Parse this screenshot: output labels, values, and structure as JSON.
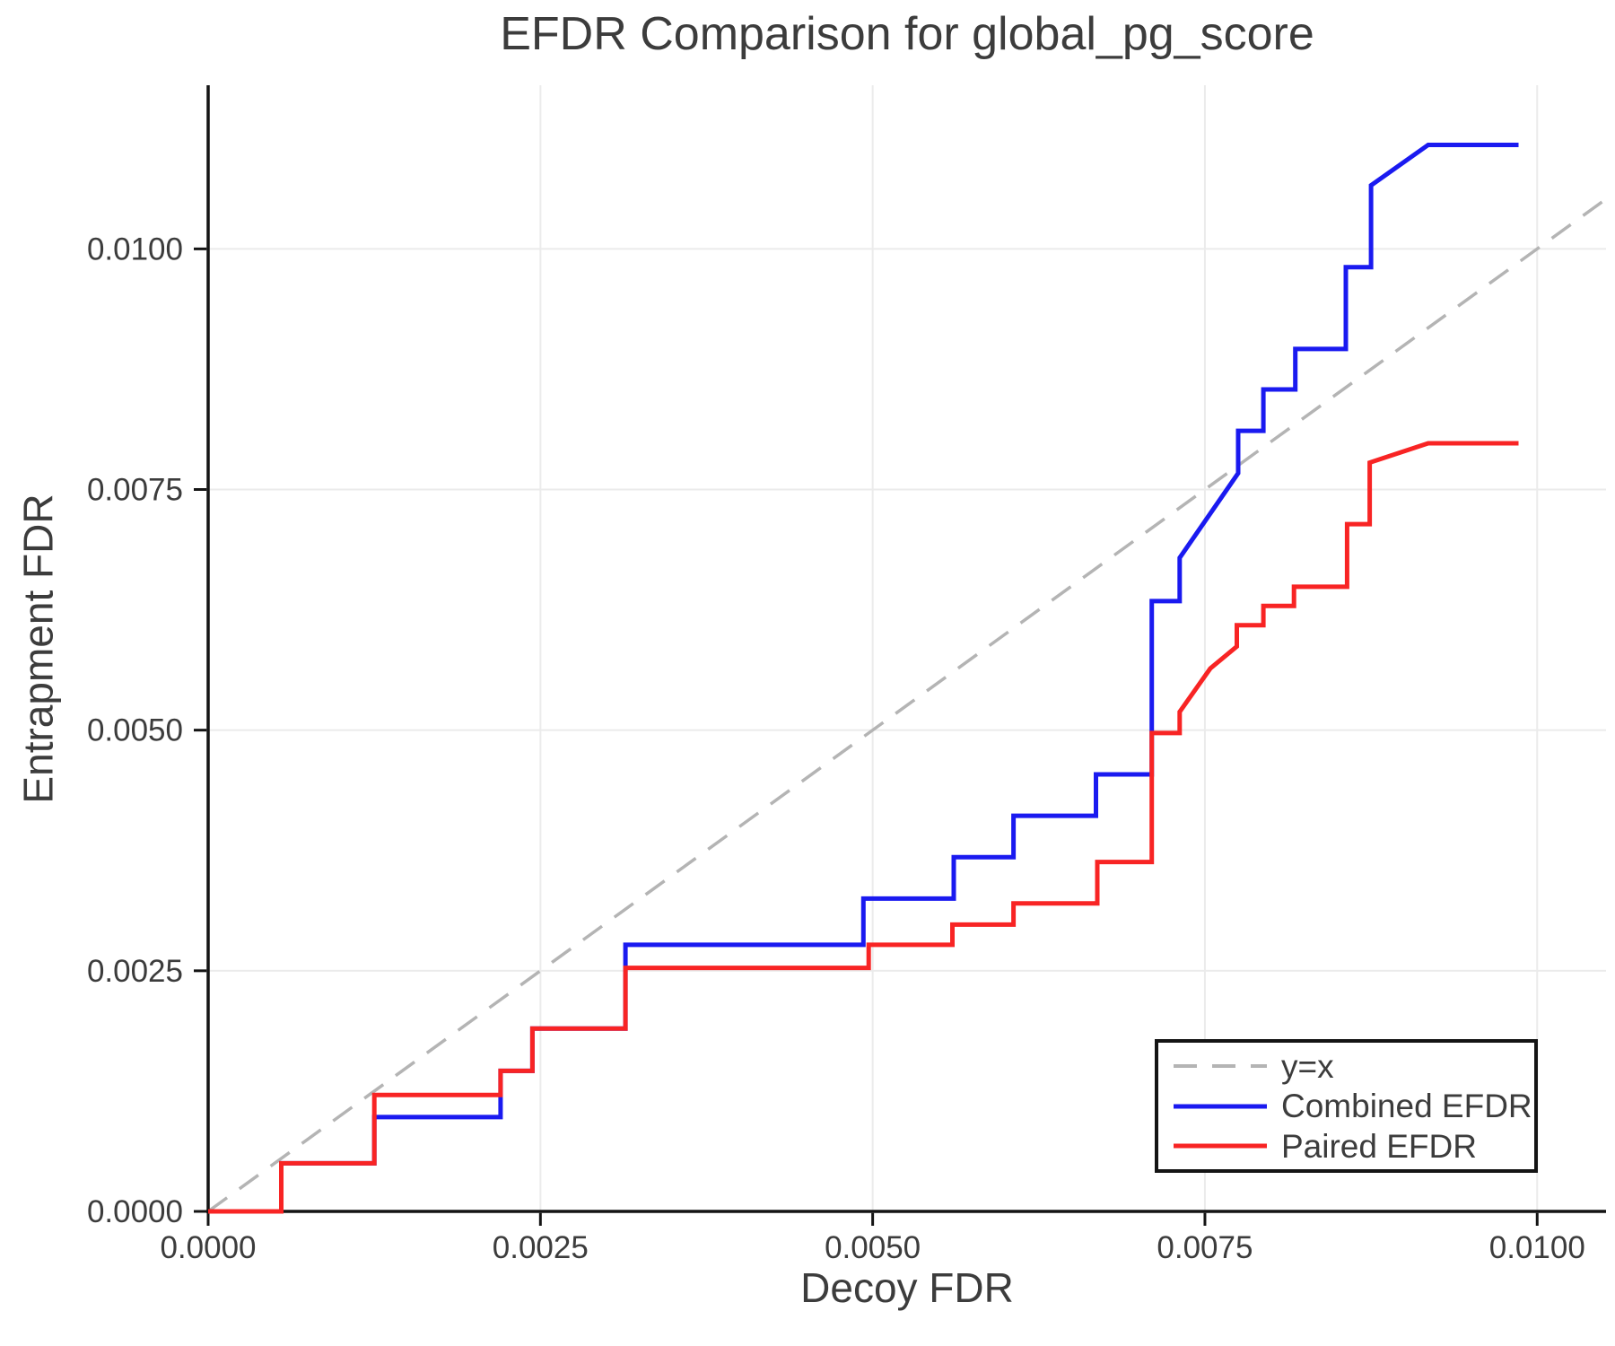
{
  "title": "EFDR Comparison for global_pg_score",
  "x_axis": {
    "label": "Decoy FDR",
    "tick_labels": [
      "0.0000",
      "0.0025",
      "0.0050",
      "0.0075",
      "0.0100"
    ],
    "tick_values": [
      0,
      0.0025,
      0.005,
      0.0075,
      0.01
    ]
  },
  "y_axis": {
    "label": "Entrapment FDR",
    "tick_labels": [
      "0.0000",
      "0.0025",
      "0.0050",
      "0.0075",
      "0.0100"
    ],
    "tick_values": [
      0,
      0.0025,
      0.005,
      0.0075,
      0.01
    ]
  },
  "legend": {
    "items": [
      {
        "label": "y=x",
        "color": "#b4b4b4",
        "dash": true
      },
      {
        "label": "Combined EFDR",
        "color": "#1a1af0",
        "dash": false
      },
      {
        "label": "Paired EFDR",
        "color": "#f82424",
        "dash": false
      }
    ]
  },
  "colors": {
    "grid": "#ebebeb",
    "spine": "#141414",
    "text": "#3c3c3c",
    "reference": "#b4b4b4",
    "combined": "#1a1af0",
    "paired": "#f82424"
  },
  "chart_data": {
    "type": "line",
    "title": "EFDR Comparison for global_pg_score",
    "xlabel": "Decoy FDR",
    "ylabel": "Entrapment FDR",
    "x_range": [
      0,
      0.010518
    ],
    "y_range": [
      0,
      0.0117
    ],
    "grid": true,
    "legend_position": "lower right",
    "reference_line": {
      "name": "y=x",
      "from": [
        0,
        0
      ],
      "to": [
        0.010518,
        0.010518
      ],
      "style": "dashed"
    },
    "series": [
      {
        "name": "Combined EFDR",
        "color": "#1a1af0",
        "points": [
          [
            0.0,
            0.0
          ],
          [
            0.00055,
            0.0
          ],
          [
            0.00055,
            0.0005
          ],
          [
            0.00125,
            0.0005
          ],
          [
            0.00125,
            0.00098
          ],
          [
            0.0022,
            0.00098
          ],
          [
            0.0022,
            0.00146
          ],
          [
            0.00244,
            0.00146
          ],
          [
            0.00244,
            0.0019
          ],
          [
            0.00314,
            0.0019
          ],
          [
            0.00314,
            0.00277
          ],
          [
            0.00493,
            0.00277
          ],
          [
            0.00493,
            0.00325
          ],
          [
            0.00561,
            0.00325
          ],
          [
            0.00561,
            0.00368
          ],
          [
            0.00606,
            0.00368
          ],
          [
            0.00606,
            0.00411
          ],
          [
            0.00668,
            0.00411
          ],
          [
            0.00668,
            0.00454
          ],
          [
            0.0071,
            0.00454
          ],
          [
            0.0071,
            0.00634
          ],
          [
            0.00731,
            0.00634
          ],
          [
            0.00731,
            0.00679
          ],
          [
            0.00775,
            0.00767
          ],
          [
            0.00775,
            0.00811
          ],
          [
            0.00794,
            0.00811
          ],
          [
            0.00794,
            0.00854
          ],
          [
            0.00818,
            0.00854
          ],
          [
            0.00818,
            0.00896
          ],
          [
            0.00856,
            0.00896
          ],
          [
            0.00856,
            0.00981
          ],
          [
            0.00875,
            0.00981
          ],
          [
            0.00875,
            0.01066
          ],
          [
            0.00918,
            0.01108
          ],
          [
            0.00986,
            0.01108
          ]
        ]
      },
      {
        "name": "Paired EFDR",
        "color": "#f82424",
        "points": [
          [
            0.0,
            0.0
          ],
          [
            0.00055,
            0.0
          ],
          [
            0.00055,
            0.0005
          ],
          [
            0.00125,
            0.0005
          ],
          [
            0.00125,
            0.00121
          ],
          [
            0.0022,
            0.00121
          ],
          [
            0.0022,
            0.00146
          ],
          [
            0.00244,
            0.00146
          ],
          [
            0.00244,
            0.0019
          ],
          [
            0.00314,
            0.0019
          ],
          [
            0.00314,
            0.00253
          ],
          [
            0.00497,
            0.00253
          ],
          [
            0.00497,
            0.00277
          ],
          [
            0.0056,
            0.00277
          ],
          [
            0.0056,
            0.00298
          ],
          [
            0.00606,
            0.00298
          ],
          [
            0.00606,
            0.0032
          ],
          [
            0.00669,
            0.0032
          ],
          [
            0.00669,
            0.00363
          ],
          [
            0.0071,
            0.00363
          ],
          [
            0.0071,
            0.00497
          ],
          [
            0.00731,
            0.00497
          ],
          [
            0.00731,
            0.00519
          ],
          [
            0.00754,
            0.00564
          ],
          [
            0.00774,
            0.00587
          ],
          [
            0.00774,
            0.00609
          ],
          [
            0.00794,
            0.00609
          ],
          [
            0.00794,
            0.00629
          ],
          [
            0.00817,
            0.00629
          ],
          [
            0.00817,
            0.00649
          ],
          [
            0.00857,
            0.00649
          ],
          [
            0.00857,
            0.00714
          ],
          [
            0.00874,
            0.00714
          ],
          [
            0.00874,
            0.00778
          ],
          [
            0.00918,
            0.00798
          ],
          [
            0.00986,
            0.00798
          ]
        ]
      }
    ]
  }
}
